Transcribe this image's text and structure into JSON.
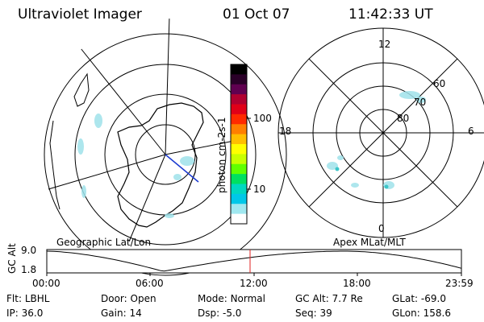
{
  "header": {
    "title": "Ultraviolet Imager",
    "date": "01 Oct 07",
    "time": "11:42:33 UT"
  },
  "colorbar": {
    "label": "photon cm-2s-1",
    "ticks": [
      "100",
      "10"
    ],
    "colors": [
      "#000000",
      "#2a0028",
      "#600050",
      "#b00030",
      "#e00018",
      "#ff2a00",
      "#ff7f00",
      "#ffbf00",
      "#ffff00",
      "#c8ff00",
      "#60ff00",
      "#00e060",
      "#00d8c0",
      "#00c8e8",
      "#a0e8f0",
      "#ffffff"
    ]
  },
  "left_map": {
    "label": "Geographic Lat/Lon"
  },
  "right_map": {
    "label": "Apex MLat/MLT",
    "hour_labels": {
      "top": "12",
      "left": "18",
      "right": "6",
      "bottom": "0"
    },
    "lat_labels": [
      "60",
      "70",
      "80"
    ]
  },
  "timeline": {
    "ylabel": "GC Alt",
    "ticks_y": [
      "9.0",
      "1.8"
    ],
    "ticks_x": [
      "00:00",
      "06:00",
      "12:00",
      "18:00",
      "23:59"
    ],
    "marker_color": "#e02020"
  },
  "footer": [
    [
      {
        "label": "Flt:",
        "value": "LBHL"
      },
      {
        "label": "Door:",
        "value": "Open"
      },
      {
        "label": "Mode:",
        "value": "Normal"
      },
      {
        "label": "GC Alt:",
        "value": "7.7 Re"
      },
      {
        "label": "GLat:",
        "value": "-69.0"
      }
    ],
    [
      {
        "label": "IP:",
        "value": "36.0"
      },
      {
        "label": "Gain:",
        "value": "14"
      },
      {
        "label": "Dsp:",
        "value": "-5.0"
      },
      {
        "label": "Seq:",
        "value": "39"
      },
      {
        "label": "GLon:",
        "value": "158.6"
      }
    ]
  ]
}
